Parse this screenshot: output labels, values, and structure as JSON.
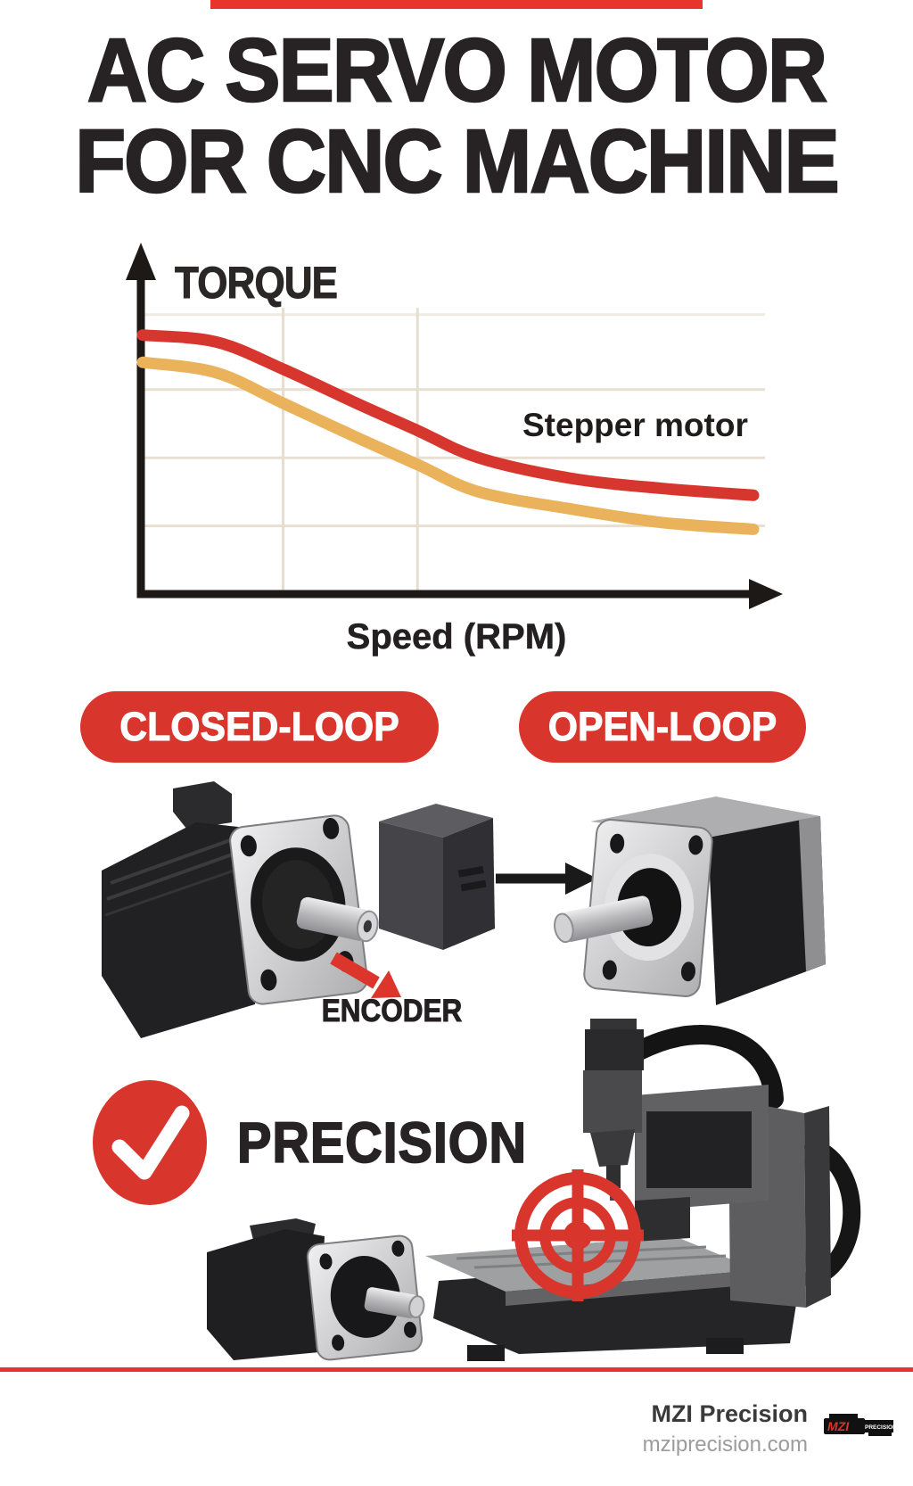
{
  "title": {
    "line1": "AC SERVO MOTOR",
    "line2": "FOR CNC MACHINE"
  },
  "chart_data": {
    "type": "line",
    "title": "",
    "ylabel": "TORQUE",
    "xlabel": "Speed (RPM)",
    "annotation": "Stepper motor",
    "x": [
      0,
      12,
      23,
      35,
      45,
      55,
      70,
      85,
      100
    ],
    "series": [
      {
        "name": "gold-curve",
        "color": "#e9b25b",
        "values": [
          68,
          65,
          56,
          46,
          38,
          30,
          25,
          21,
          19
        ]
      },
      {
        "name": "red-curve",
        "color": "#d7362e",
        "values": [
          76,
          74,
          66,
          56,
          48,
          40,
          34,
          31,
          29
        ]
      }
    ],
    "xlim": [
      0,
      100
    ],
    "ylim": [
      0,
      100
    ],
    "grid": {
      "x": [
        23,
        45
      ],
      "y": [
        82,
        60,
        40,
        20
      ]
    },
    "axis_color": "#1c1917",
    "grid_color": "#e6dfd0",
    "legend_position": "none"
  },
  "badges": {
    "closed_loop": "CLOSED-LOOP",
    "open_loop": "OPEN-LOOP"
  },
  "diagram": {
    "encoder_label": "ENCODER"
  },
  "precision": {
    "label": "PRECISION"
  },
  "colors": {
    "accent_red": "#d8352d",
    "separator_red": "#e8342b"
  },
  "footer": {
    "brand": "MZI Precision",
    "website": "mziprecision.com",
    "logo_mzi": "MZI",
    "logo_precision": "PRECISION"
  }
}
